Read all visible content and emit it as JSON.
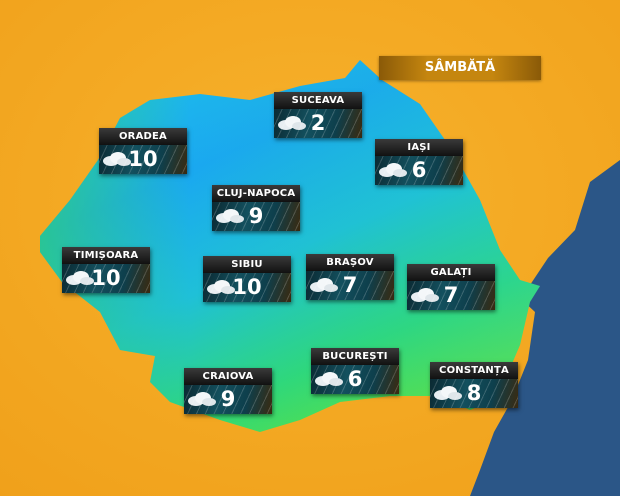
{
  "day_label": "SÂMBĂTĂ",
  "colors": {
    "land_outside": "#f5a623",
    "sea": "#2b5687",
    "cold": "#1fb6f0",
    "mild": "#2ad66a"
  },
  "cities": [
    {
      "name": "SUCEAVA",
      "temp": "2",
      "icon": "cloud-rain-icon"
    },
    {
      "name": "ORADEA",
      "temp": "10",
      "icon": "cloud-rain-icon"
    },
    {
      "name": "IAȘI",
      "temp": "6",
      "icon": "cloud-rain-icon"
    },
    {
      "name": "CLUJ-NAPOCA",
      "temp": "9",
      "icon": "cloud-rain-icon"
    },
    {
      "name": "TIMIȘOARA",
      "temp": "10",
      "icon": "cloud-rain-icon"
    },
    {
      "name": "SIBIU",
      "temp": "10",
      "icon": "cloud-rain-icon"
    },
    {
      "name": "BRAȘOV",
      "temp": "7",
      "icon": "cloud-rain-icon"
    },
    {
      "name": "GALAȚI",
      "temp": "7",
      "icon": "cloud-rain-icon"
    },
    {
      "name": "BUCUREȘTI",
      "temp": "6",
      "icon": "cloud-rain-icon"
    },
    {
      "name": "CRAIOVA",
      "temp": "9",
      "icon": "cloud-rain-icon"
    },
    {
      "name": "CONSTANȚA",
      "temp": "8",
      "icon": "cloud-rain-icon"
    }
  ]
}
